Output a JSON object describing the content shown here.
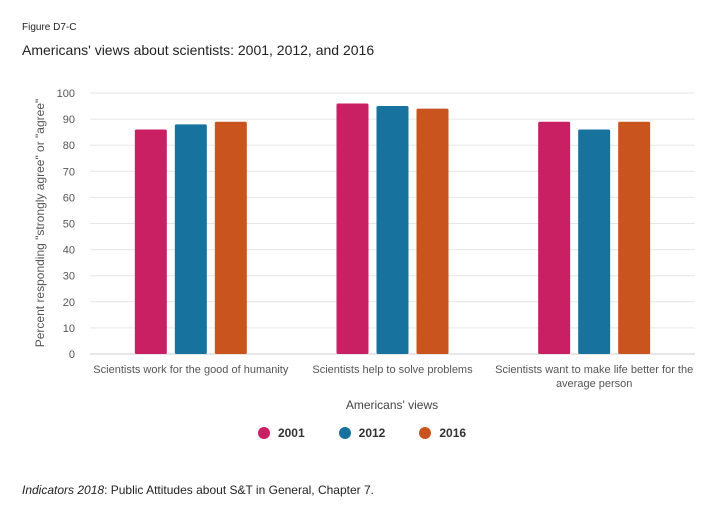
{
  "figure_label": "Figure D7-C",
  "title": "Americans' views about scientists: 2001, 2012, and 2016",
  "source": {
    "italic": "Indicators 2018",
    "sep": ": ",
    "text": "Public Attitudes about S&T in General, Chapter 7."
  },
  "chart_data": {
    "type": "bar",
    "title": "Americans' views about scientists: 2001, 2012, and 2016",
    "xlabel": "Americans' views",
    "ylabel": "Percent responding \"strongly agree\" or \"agree\"",
    "ylim": [
      0,
      100
    ],
    "yticks": [
      0,
      10,
      20,
      30,
      40,
      50,
      60,
      70,
      80,
      90,
      100
    ],
    "grid": true,
    "legend_position": "bottom-center",
    "categories": [
      [
        "Scientists work for the good of humanity"
      ],
      [
        "Scientists help to solve problems"
      ],
      [
        "Scientists want to make life better for the",
        "average person"
      ]
    ],
    "series": [
      {
        "name": "2001",
        "color": "#c91f63",
        "values": [
          86,
          96,
          89
        ]
      },
      {
        "name": "2012",
        "color": "#17729e",
        "values": [
          88,
          95,
          86
        ]
      },
      {
        "name": "2016",
        "color": "#c9541e",
        "values": [
          89,
          94,
          89
        ]
      }
    ]
  }
}
